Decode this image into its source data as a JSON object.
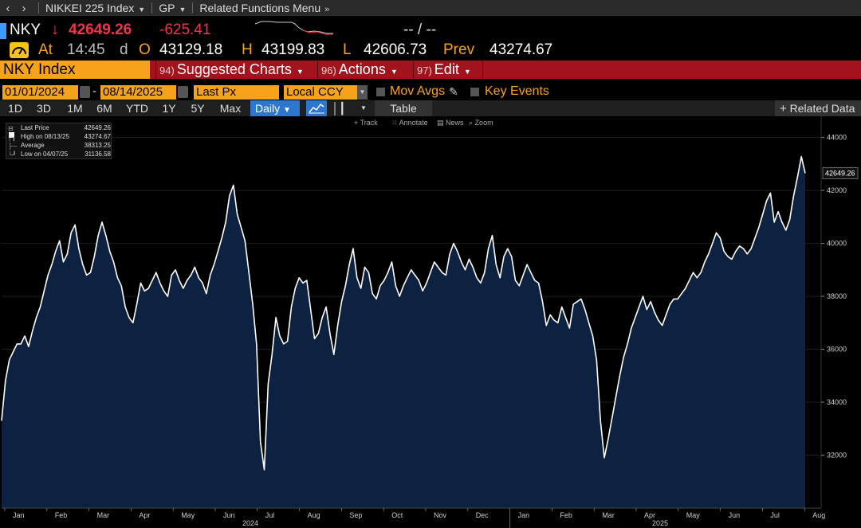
{
  "nav": {
    "back_icon": "chevron-left-icon",
    "forward_icon": "chevron-right-icon",
    "security": "NIKKEI 225 Index",
    "source": "GP",
    "menu": "Related Functions Menu"
  },
  "quote": {
    "ticker": "NKY",
    "last": "42649.26",
    "change": "-625.41",
    "bid_ask": "-- / --",
    "at_label": "At",
    "time": "14:45",
    "time_suffix": "d",
    "open_label": "O",
    "open": "43129.18",
    "high_label": "H",
    "high": "43199.83",
    "low_label": "L",
    "low": "42606.73",
    "prev_label": "Prev",
    "prev": "43274.67"
  },
  "toolbar": {
    "security_field": "NKY Index",
    "suggested_num": "94)",
    "suggested": "Suggested Charts",
    "actions_num": "96)",
    "actions": "Actions",
    "edit_num": "97)",
    "edit": "Edit"
  },
  "controls": {
    "start_date": "01/01/2024",
    "end_date": "08/14/2025",
    "field": "Last Px",
    "currency": "Local CCY",
    "mov_avgs": "Mov Avgs",
    "key_events": "Key Events"
  },
  "periods": [
    "1D",
    "3D",
    "1M",
    "6M",
    "YTD",
    "1Y",
    "5Y",
    "Max"
  ],
  "frequency": "Daily",
  "table_label": "Table",
  "related_label": "Related Data",
  "chart_tools": [
    "Track",
    "Annotate",
    "News",
    "Zoom"
  ],
  "legend": [
    {
      "label": "Last Price",
      "value": "42649.26"
    },
    {
      "label": "High on 08/13/25",
      "value": "43274.67"
    },
    {
      "label": "Average",
      "value": "38313.25"
    },
    {
      "label": "Low on 04/07/25",
      "value": "31136.58"
    }
  ],
  "colors": {
    "amber": "#f7a21b",
    "red": "#f0344b",
    "line": "#ffffff",
    "area": "#0d2240",
    "blue": "#2e77d0"
  },
  "chart_data": {
    "type": "area",
    "ylim": [
      30000,
      44500
    ],
    "yticks": [
      32000,
      34000,
      36000,
      38000,
      40000,
      42000,
      44000
    ],
    "months": [
      "Jan",
      "Feb",
      "Mar",
      "Apr",
      "May",
      "Jun",
      "Jul",
      "Aug",
      "Sep",
      "Oct",
      "Nov",
      "Dec",
      "Jan",
      "Feb",
      "Mar",
      "Apr",
      "May",
      "Jun",
      "Jul",
      "Aug"
    ],
    "years": [
      "2024",
      "2025"
    ],
    "last_label": "42649.26",
    "series": [
      {
        "values": [
          33300,
          34800,
          35600,
          35900,
          36200,
          36200,
          36500,
          36100,
          36700,
          37200,
          37600,
          38200,
          38800,
          39200,
          39700,
          40100,
          39300,
          39600,
          40400,
          40700,
          39800,
          39200,
          38800,
          38900,
          39500,
          40300,
          40800,
          40300,
          39700,
          39300,
          38700,
          38400,
          37600,
          37200,
          37000,
          37700,
          38500,
          38200,
          38300,
          38600,
          38900,
          38500,
          38200,
          38000,
          38800,
          39000,
          38600,
          38300,
          38600,
          38800,
          39100,
          38700,
          38500,
          38100,
          38800,
          39200,
          39700,
          40200,
          40800,
          41800,
          42200,
          41100,
          40600,
          40100,
          38900,
          37700,
          36200,
          32500,
          31450,
          34700,
          35800,
          37200,
          36500,
          36200,
          36300,
          37600,
          38300,
          38700,
          38500,
          38600,
          37500,
          36400,
          36600,
          37200,
          37600,
          36600,
          35800,
          36900,
          37800,
          38400,
          39200,
          39800,
          38700,
          38300,
          39100,
          38900,
          38100,
          37900,
          38400,
          38600,
          38900,
          39300,
          38400,
          38000,
          38400,
          38700,
          39000,
          38800,
          38600,
          38200,
          38500,
          38900,
          39300,
          39100,
          38900,
          38800,
          39600,
          40000,
          39700,
          39300,
          39000,
          39400,
          39100,
          38700,
          38500,
          38900,
          39800,
          40300,
          39200,
          38700,
          39500,
          39800,
          39500,
          38600,
          38400,
          38800,
          39200,
          38900,
          38600,
          38500,
          37800,
          36900,
          37300,
          37100,
          37000,
          37600,
          37200,
          36800,
          37700,
          37800,
          37900,
          37500,
          37000,
          36500,
          35600,
          33300,
          31900,
          32600,
          33400,
          34200,
          35000,
          35700,
          36200,
          36800,
          37200,
          37600,
          38000,
          37500,
          37800,
          37400,
          37100,
          36900,
          37300,
          37700,
          37900,
          37900,
          38100,
          38300,
          38600,
          38900,
          38700,
          38900,
          39300,
          39600,
          40000,
          40400,
          40200,
          39700,
          39500,
          39400,
          39700,
          39900,
          39800,
          39600,
          39800,
          40200,
          40600,
          41100,
          41600,
          41900,
          40800,
          41200,
          40800,
          40500,
          40900,
          41800,
          42500,
          43274.67,
          42649.26
        ]
      }
    ]
  }
}
